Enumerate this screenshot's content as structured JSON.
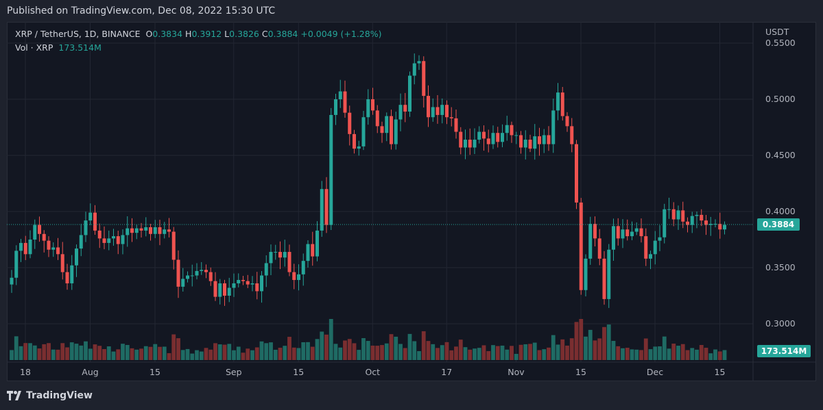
{
  "header": {
    "published": "Published on TradingView.com, Dec 08, 2022 15:30 UTC"
  },
  "legend": {
    "symbol": "XRP / TetherUS, 1D, BINANCE",
    "o_label": "O",
    "o_value": "0.3834",
    "h_label": "H",
    "h_value": "0.3912",
    "l_label": "L",
    "l_value": "0.3826",
    "c_label": "C",
    "c_value": "0.3884",
    "change": "+0.0049 (+1.28%)",
    "vol_label": "Vol · XRP",
    "vol_value": "173.514M"
  },
  "footer": {
    "logo_text": "TradingView"
  },
  "colors": {
    "up": "#26a69a",
    "down": "#ef5350",
    "up_vol": "#1f6b64",
    "down_vol": "#7a2e30",
    "grid": "#232733",
    "bg": "#131722"
  },
  "chart_data": {
    "type": "candlestick",
    "currency": "USDT",
    "y_ticks": [
      "0.5500",
      "0.5000",
      "0.4500",
      "0.4000",
      "0.3500",
      "0.3000"
    ],
    "y_tick_values": [
      0.55,
      0.5,
      0.45,
      0.4,
      0.35,
      0.3
    ],
    "x_ticks": [
      {
        "label": "18",
        "day": 0
      },
      {
        "label": "Aug",
        "day": 14
      },
      {
        "label": "15",
        "day": 28
      },
      {
        "label": "Sep",
        "day": 45
      },
      {
        "label": "15",
        "day": 59
      },
      {
        "label": "Oct",
        "day": 75
      },
      {
        "label": "17",
        "day": 91
      },
      {
        "label": "Nov",
        "day": 106
      },
      {
        "label": "15",
        "day": 120
      },
      {
        "label": "Dec",
        "day": 136
      },
      {
        "label": "15",
        "day": 150
      }
    ],
    "last_price": 0.3884,
    "last_price_label": "0.3884",
    "volume_label": "173.514M",
    "ylim": [
      0.285,
      0.575
    ],
    "closes": [
      0.341,
      0.365,
      0.372,
      0.362,
      0.375,
      0.388,
      0.38,
      0.374,
      0.366,
      0.368,
      0.362,
      0.346,
      0.336,
      0.352,
      0.367,
      0.379,
      0.392,
      0.399,
      0.383,
      0.376,
      0.372,
      0.376,
      0.378,
      0.371,
      0.379,
      0.385,
      0.381,
      0.385,
      0.383,
      0.386,
      0.38,
      0.386,
      0.38,
      0.384,
      0.382,
      0.357,
      0.333,
      0.34,
      0.343,
      0.343,
      0.347,
      0.348,
      0.346,
      0.338,
      0.324,
      0.336,
      0.325,
      0.332,
      0.336,
      0.339,
      0.338,
      0.335,
      0.336,
      0.329,
      0.343,
      0.354,
      0.364,
      0.364,
      0.359,
      0.364,
      0.346,
      0.339,
      0.344,
      0.356,
      0.371,
      0.36,
      0.383,
      0.42,
      0.388,
      0.486,
      0.5,
      0.507,
      0.488,
      0.469,
      0.456,
      0.458,
      0.484,
      0.5,
      0.49,
      0.476,
      0.47,
      0.485,
      0.46,
      0.482,
      0.495,
      0.489,
      0.521,
      0.532,
      0.534,
      0.503,
      0.484,
      0.493,
      0.486,
      0.495,
      0.484,
      0.483,
      0.471,
      0.457,
      0.464,
      0.457,
      0.464,
      0.471,
      0.465,
      0.46,
      0.47,
      0.462,
      0.47,
      0.477,
      0.468,
      0.468,
      0.457,
      0.464,
      0.456,
      0.467,
      0.46,
      0.468,
      0.46,
      0.49,
      0.506,
      0.485,
      0.476,
      0.46,
      0.408,
      0.33,
      0.358,
      0.389,
      0.376,
      0.358,
      0.322,
      0.366,
      0.387,
      0.376,
      0.384,
      0.378,
      0.382,
      0.385,
      0.378,
      0.358,
      0.362,
      0.374,
      0.377,
      0.402,
      0.402,
      0.393,
      0.401,
      0.391,
      0.388,
      0.396,
      0.397,
      0.392,
      0.388,
      0.389,
      0.389,
      0.384,
      0.388
    ]
  }
}
